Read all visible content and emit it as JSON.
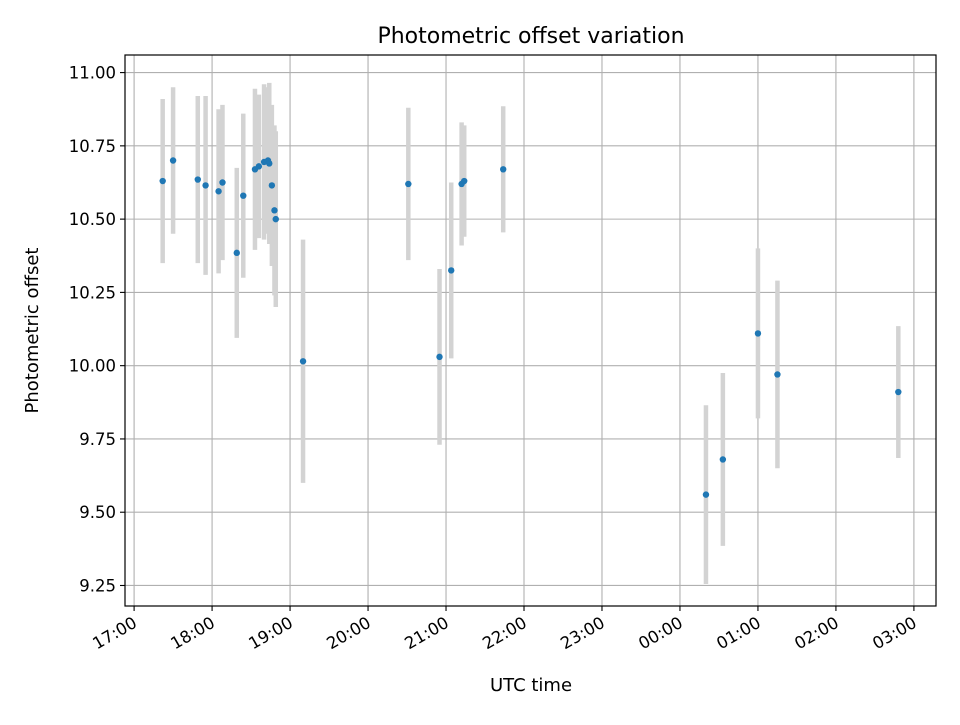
{
  "chart_data": {
    "type": "scatter",
    "title": "Photometric offset variation",
    "xlabel": "UTC time",
    "ylabel": "Photometric offset",
    "x_axis_type": "time",
    "xlim": [
      "16:53",
      "03:17"
    ],
    "ylim": [
      9.18,
      11.06
    ],
    "grid": true,
    "x_ticks": [
      "17:00",
      "18:00",
      "19:00",
      "20:00",
      "21:00",
      "22:00",
      "23:00",
      "00:00",
      "01:00",
      "02:00",
      "03:00"
    ],
    "y_ticks": [
      "9.25",
      "9.50",
      "9.75",
      "10.00",
      "10.25",
      "10.50",
      "10.75",
      "11.00"
    ],
    "colors": {
      "point": "#1f77b4",
      "error_bar": "#d3d3d3",
      "grid": "#b0b0b0"
    },
    "series": [
      {
        "error_type": "vertical",
        "points": [
          {
            "x": "17:22",
            "y": 10.63,
            "yerr": 0.28
          },
          {
            "x": "17:30",
            "y": 10.7,
            "yerr": 0.25
          },
          {
            "x": "17:49",
            "y": 10.635,
            "yerr": 0.285
          },
          {
            "x": "17:55",
            "y": 10.615,
            "yerr": 0.305
          },
          {
            "x": "18:05",
            "y": 10.595,
            "yerr": 0.28
          },
          {
            "x": "18:08",
            "y": 10.625,
            "yerr": 0.265
          },
          {
            "x": "18:19",
            "y": 10.385,
            "yerr": 0.29
          },
          {
            "x": "18:24",
            "y": 10.58,
            "yerr": 0.28
          },
          {
            "x": "18:33",
            "y": 10.67,
            "yerr": 0.275
          },
          {
            "x": "18:36",
            "y": 10.68,
            "yerr": 0.245
          },
          {
            "x": "18:40",
            "y": 10.695,
            "yerr": 0.265
          },
          {
            "x": "18:43",
            "y": 10.7,
            "yerr": 0.25
          },
          {
            "x": "18:44",
            "y": 10.69,
            "yerr": 0.275
          },
          {
            "x": "18:46",
            "y": 10.615,
            "yerr": 0.275
          },
          {
            "x": "18:48",
            "y": 10.53,
            "yerr": 0.29
          },
          {
            "x": "18:49",
            "y": 10.5,
            "yerr": 0.3
          },
          {
            "x": "19:10",
            "y": 10.015,
            "yerr": 0.415
          },
          {
            "x": "20:31",
            "y": 10.62,
            "yerr": 0.26
          },
          {
            "x": "20:55",
            "y": 10.03,
            "yerr": 0.3
          },
          {
            "x": "21:04",
            "y": 10.325,
            "yerr": 0.3
          },
          {
            "x": "21:12",
            "y": 10.62,
            "yerr": 0.21
          },
          {
            "x": "21:14",
            "y": 10.63,
            "yerr": 0.19
          },
          {
            "x": "21:44",
            "y": 10.67,
            "yerr": 0.215
          },
          {
            "x": "00:20",
            "y": 9.56,
            "yerr": 0.305
          },
          {
            "x": "00:33",
            "y": 9.68,
            "yerr": 0.295
          },
          {
            "x": "01:00",
            "y": 10.11,
            "yerr": 0.29
          },
          {
            "x": "01:15",
            "y": 9.97,
            "yerr": 0.32
          },
          {
            "x": "02:48",
            "y": 9.91,
            "yerr": 0.225
          }
        ]
      }
    ]
  }
}
